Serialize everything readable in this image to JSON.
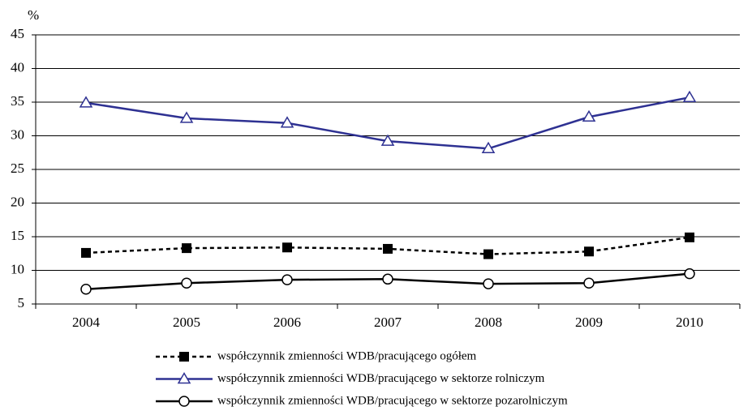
{
  "chart_data": {
    "type": "line",
    "y_label": "%",
    "categories": [
      "2004",
      "2005",
      "2006",
      "2007",
      "2008",
      "2009",
      "2010"
    ],
    "ylim": [
      5,
      45
    ],
    "yticks": [
      5,
      10,
      15,
      20,
      25,
      30,
      35,
      40,
      45
    ],
    "grid": true,
    "series": [
      {
        "name": "współczynnik zmienności WDB/pracującego ogółem",
        "color": "#000000",
        "dashed": true,
        "marker": "square",
        "values": [
          12.6,
          13.3,
          13.4,
          13.2,
          12.4,
          12.8,
          14.9
        ]
      },
      {
        "name": "współczynnik zmienności WDB/pracującego w sektorze rolniczym",
        "color": "#2e3192",
        "dashed": false,
        "marker": "triangle",
        "values": [
          34.9,
          32.6,
          31.9,
          29.2,
          28.1,
          32.8,
          35.7
        ]
      },
      {
        "name": "współczynnik zmienności WDB/pracującego w sektorze pozarolniczym",
        "color": "#000000",
        "dashed": false,
        "marker": "circle",
        "values": [
          7.2,
          8.1,
          8.6,
          8.7,
          8.0,
          8.1,
          9.5
        ]
      }
    ]
  }
}
